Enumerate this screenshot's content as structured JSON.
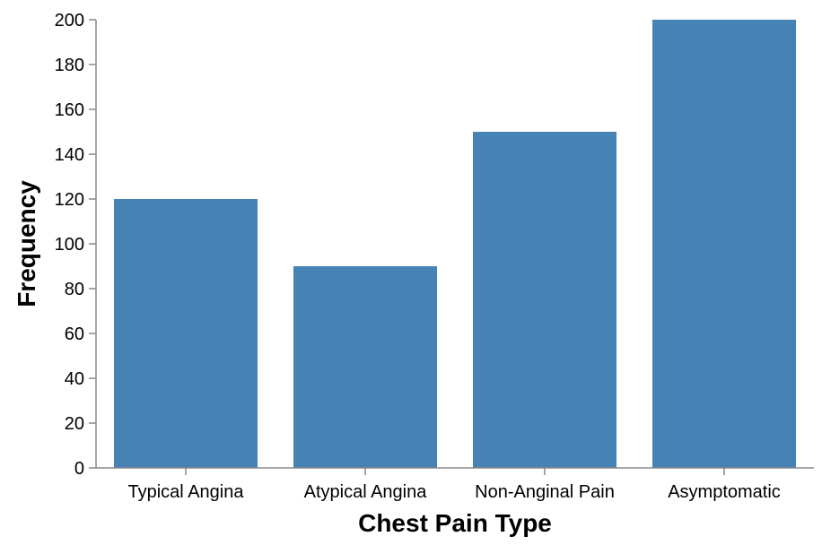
{
  "chart_data": {
    "type": "bar",
    "categories": [
      "Typical Angina",
      "Atypical Angina",
      "Non-Anginal Pain",
      "Asymptomatic"
    ],
    "values": [
      120,
      90,
      150,
      200
    ],
    "title": "",
    "xlabel": "Chest Pain Type",
    "ylabel": "Frequency",
    "ylim": [
      0,
      200
    ],
    "yticks": [
      0,
      20,
      40,
      60,
      80,
      100,
      120,
      140,
      160,
      180,
      200
    ],
    "grid": false,
    "legend": "none",
    "bar_color": "#4682b4",
    "axis_color": "#888888"
  }
}
